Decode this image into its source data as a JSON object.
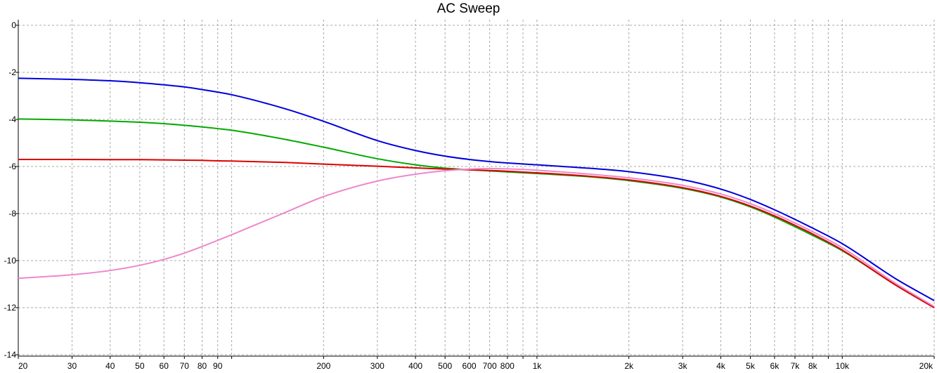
{
  "chart_data": {
    "type": "line",
    "title": "AC Sweep",
    "xlabel": "",
    "ylabel": "",
    "xscale": "log",
    "xlim": [
      20,
      20000
    ],
    "ylim": [
      -14,
      0
    ],
    "grid": true,
    "y_ticks": [
      {
        "value": 0,
        "label": "0"
      },
      {
        "value": -2,
        "label": "-2"
      },
      {
        "value": -4,
        "label": "-4"
      },
      {
        "value": -6,
        "label": "-6"
      },
      {
        "value": -8,
        "label": "-8"
      },
      {
        "value": -10,
        "label": "-10"
      },
      {
        "value": -12,
        "label": "-12"
      },
      {
        "value": -14,
        "label": "-14"
      }
    ],
    "x_ticks": [
      {
        "value": 20,
        "label": "20"
      },
      {
        "value": 30,
        "label": "30"
      },
      {
        "value": 40,
        "label": "40"
      },
      {
        "value": 50,
        "label": "50"
      },
      {
        "value": 60,
        "label": "60"
      },
      {
        "value": 70,
        "label": "70"
      },
      {
        "value": 80,
        "label": "80"
      },
      {
        "value": 90,
        "label": "90"
      },
      {
        "value": 100,
        "label": ""
      },
      {
        "value": 200,
        "label": "200"
      },
      {
        "value": 300,
        "label": "300"
      },
      {
        "value": 400,
        "label": "400"
      },
      {
        "value": 500,
        "label": "500"
      },
      {
        "value": 600,
        "label": "600"
      },
      {
        "value": 700,
        "label": "700"
      },
      {
        "value": 800,
        "label": "800"
      },
      {
        "value": 900,
        "label": ""
      },
      {
        "value": 1000,
        "label": "1k"
      },
      {
        "value": 2000,
        "label": "2k"
      },
      {
        "value": 3000,
        "label": "3k"
      },
      {
        "value": 4000,
        "label": "4k"
      },
      {
        "value": 5000,
        "label": "5k"
      },
      {
        "value": 6000,
        "label": "6k"
      },
      {
        "value": 7000,
        "label": "7k"
      },
      {
        "value": 8000,
        "label": "8k"
      },
      {
        "value": 9000,
        "label": ""
      },
      {
        "value": 10000,
        "label": "10k"
      },
      {
        "value": 20000,
        "label": "20k"
      }
    ],
    "series": [
      {
        "color": "#0000dd",
        "x": [
          20,
          30,
          40,
          50,
          60,
          70,
          80,
          90,
          100,
          150,
          200,
          300,
          400,
          500,
          600,
          700,
          800,
          1000,
          1500,
          2000,
          3000,
          4000,
          5000,
          6000,
          7000,
          8000,
          10000,
          15000,
          20000
        ],
        "y": [
          -2.25,
          -2.3,
          -2.36,
          -2.44,
          -2.53,
          -2.62,
          -2.73,
          -2.84,
          -2.95,
          -3.55,
          -4.08,
          -4.9,
          -5.32,
          -5.56,
          -5.7,
          -5.79,
          -5.85,
          -5.93,
          -6.08,
          -6.22,
          -6.56,
          -6.96,
          -7.4,
          -7.84,
          -8.25,
          -8.62,
          -9.28,
          -10.78,
          -11.7
        ]
      },
      {
        "color": "#00aa00",
        "x": [
          20,
          30,
          40,
          50,
          60,
          70,
          80,
          90,
          100,
          150,
          200,
          300,
          400,
          500,
          600,
          700,
          800,
          1000,
          1500,
          2000,
          3000,
          4000,
          5000,
          6000,
          7000,
          8000,
          10000,
          15000,
          20000
        ],
        "y": [
          -3.98,
          -4.02,
          -4.07,
          -4.12,
          -4.18,
          -4.25,
          -4.32,
          -4.39,
          -4.46,
          -4.85,
          -5.18,
          -5.67,
          -5.93,
          -6.07,
          -6.14,
          -6.19,
          -6.23,
          -6.3,
          -6.44,
          -6.6,
          -6.93,
          -7.3,
          -7.72,
          -8.15,
          -8.56,
          -8.93,
          -9.58,
          -11.05,
          -12.0
        ]
      },
      {
        "color": "#dd0000",
        "x": [
          20,
          30,
          40,
          50,
          60,
          70,
          80,
          90,
          100,
          150,
          200,
          300,
          400,
          500,
          600,
          700,
          800,
          1000,
          1500,
          2000,
          3000,
          4000,
          5000,
          6000,
          7000,
          8000,
          10000,
          15000,
          20000
        ],
        "y": [
          -5.7,
          -5.7,
          -5.71,
          -5.71,
          -5.72,
          -5.73,
          -5.74,
          -5.76,
          -5.77,
          -5.83,
          -5.9,
          -5.99,
          -6.06,
          -6.11,
          -6.14,
          -6.17,
          -6.2,
          -6.27,
          -6.42,
          -6.57,
          -6.9,
          -7.27,
          -7.68,
          -8.1,
          -8.5,
          -8.87,
          -9.55,
          -11.05,
          -12.0
        ]
      },
      {
        "color": "#ee88cc",
        "x": [
          20,
          30,
          40,
          50,
          60,
          70,
          80,
          90,
          100,
          150,
          200,
          300,
          400,
          500,
          600,
          700,
          800,
          1000,
          1500,
          2000,
          3000,
          4000,
          5000,
          6000,
          7000,
          8000,
          10000,
          15000,
          20000
        ],
        "y": [
          -10.75,
          -10.6,
          -10.42,
          -10.2,
          -9.95,
          -9.68,
          -9.4,
          -9.14,
          -8.9,
          -7.95,
          -7.28,
          -6.62,
          -6.33,
          -6.18,
          -6.11,
          -6.09,
          -6.1,
          -6.16,
          -6.33,
          -6.48,
          -6.8,
          -7.17,
          -7.58,
          -8.0,
          -8.4,
          -8.77,
          -9.45,
          -10.98,
          -11.95
        ]
      }
    ]
  }
}
